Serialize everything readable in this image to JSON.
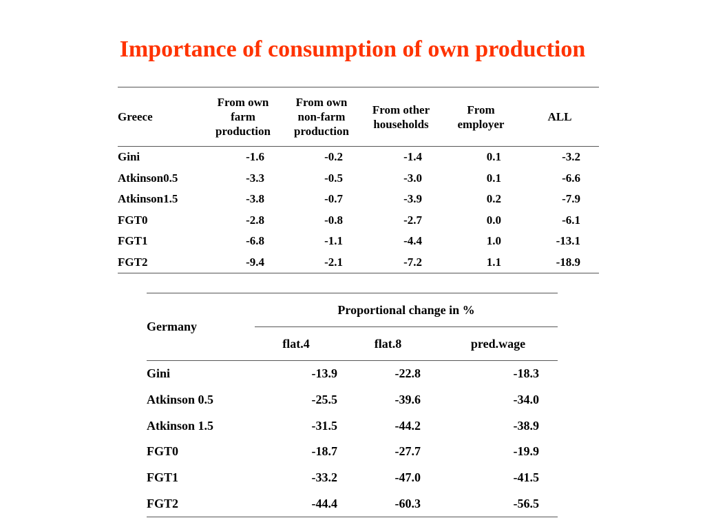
{
  "title": "Importance of consumption of own production",
  "title_color": "#ff3300",
  "greece": {
    "country": "Greece",
    "headers": [
      [
        "From own",
        "farm",
        "production"
      ],
      [
        "From own",
        "non-farm",
        "production"
      ],
      [
        "From other",
        "households"
      ],
      [
        "From",
        "employer"
      ],
      [
        "ALL"
      ]
    ],
    "rows": [
      {
        "label": "Gini",
        "values": [
          "-1.6",
          "-0.2",
          "-1.4",
          "0.1",
          "-3.2"
        ]
      },
      {
        "label": "Atkinson0.5",
        "values": [
          "-3.3",
          "-0.5",
          "-3.0",
          "0.1",
          "-6.6"
        ]
      },
      {
        "label": "Atkinson1.5",
        "values": [
          "-3.8",
          "-0.7",
          "-3.9",
          "0.2",
          "-7.9"
        ]
      },
      {
        "label": "FGT0",
        "values": [
          "-2.8",
          "-0.8",
          "-2.7",
          "0.0",
          "-6.1"
        ]
      },
      {
        "label": "FGT1",
        "values": [
          "-6.8",
          "-1.1",
          "-4.4",
          "1.0",
          "-13.1"
        ]
      },
      {
        "label": "FGT2",
        "values": [
          "-9.4",
          "-2.1",
          "-7.2",
          "1.1",
          "-18.9"
        ]
      }
    ]
  },
  "germany": {
    "country": "Germany",
    "group_header": "Proportional change in %",
    "columns": [
      "flat.4",
      "flat.8",
      "pred.wage"
    ],
    "rows": [
      {
        "label": "Gini",
        "values": [
          "-13.9",
          "-22.8",
          "-18.3"
        ]
      },
      {
        "label": "Atkinson 0.5",
        "values": [
          "-25.5",
          "-39.6",
          "-34.0"
        ]
      },
      {
        "label": "Atkinson 1.5",
        "values": [
          "-31.5",
          "-44.2",
          "-38.9"
        ]
      },
      {
        "label": "FGT0",
        "values": [
          "-18.7",
          "-27.7",
          "-19.9"
        ]
      },
      {
        "label": "FGT1",
        "values": [
          "-33.2",
          "-47.0",
          "-41.5"
        ]
      },
      {
        "label": "FGT2",
        "values": [
          "-44.4",
          "-60.3",
          "-56.5"
        ]
      }
    ]
  }
}
